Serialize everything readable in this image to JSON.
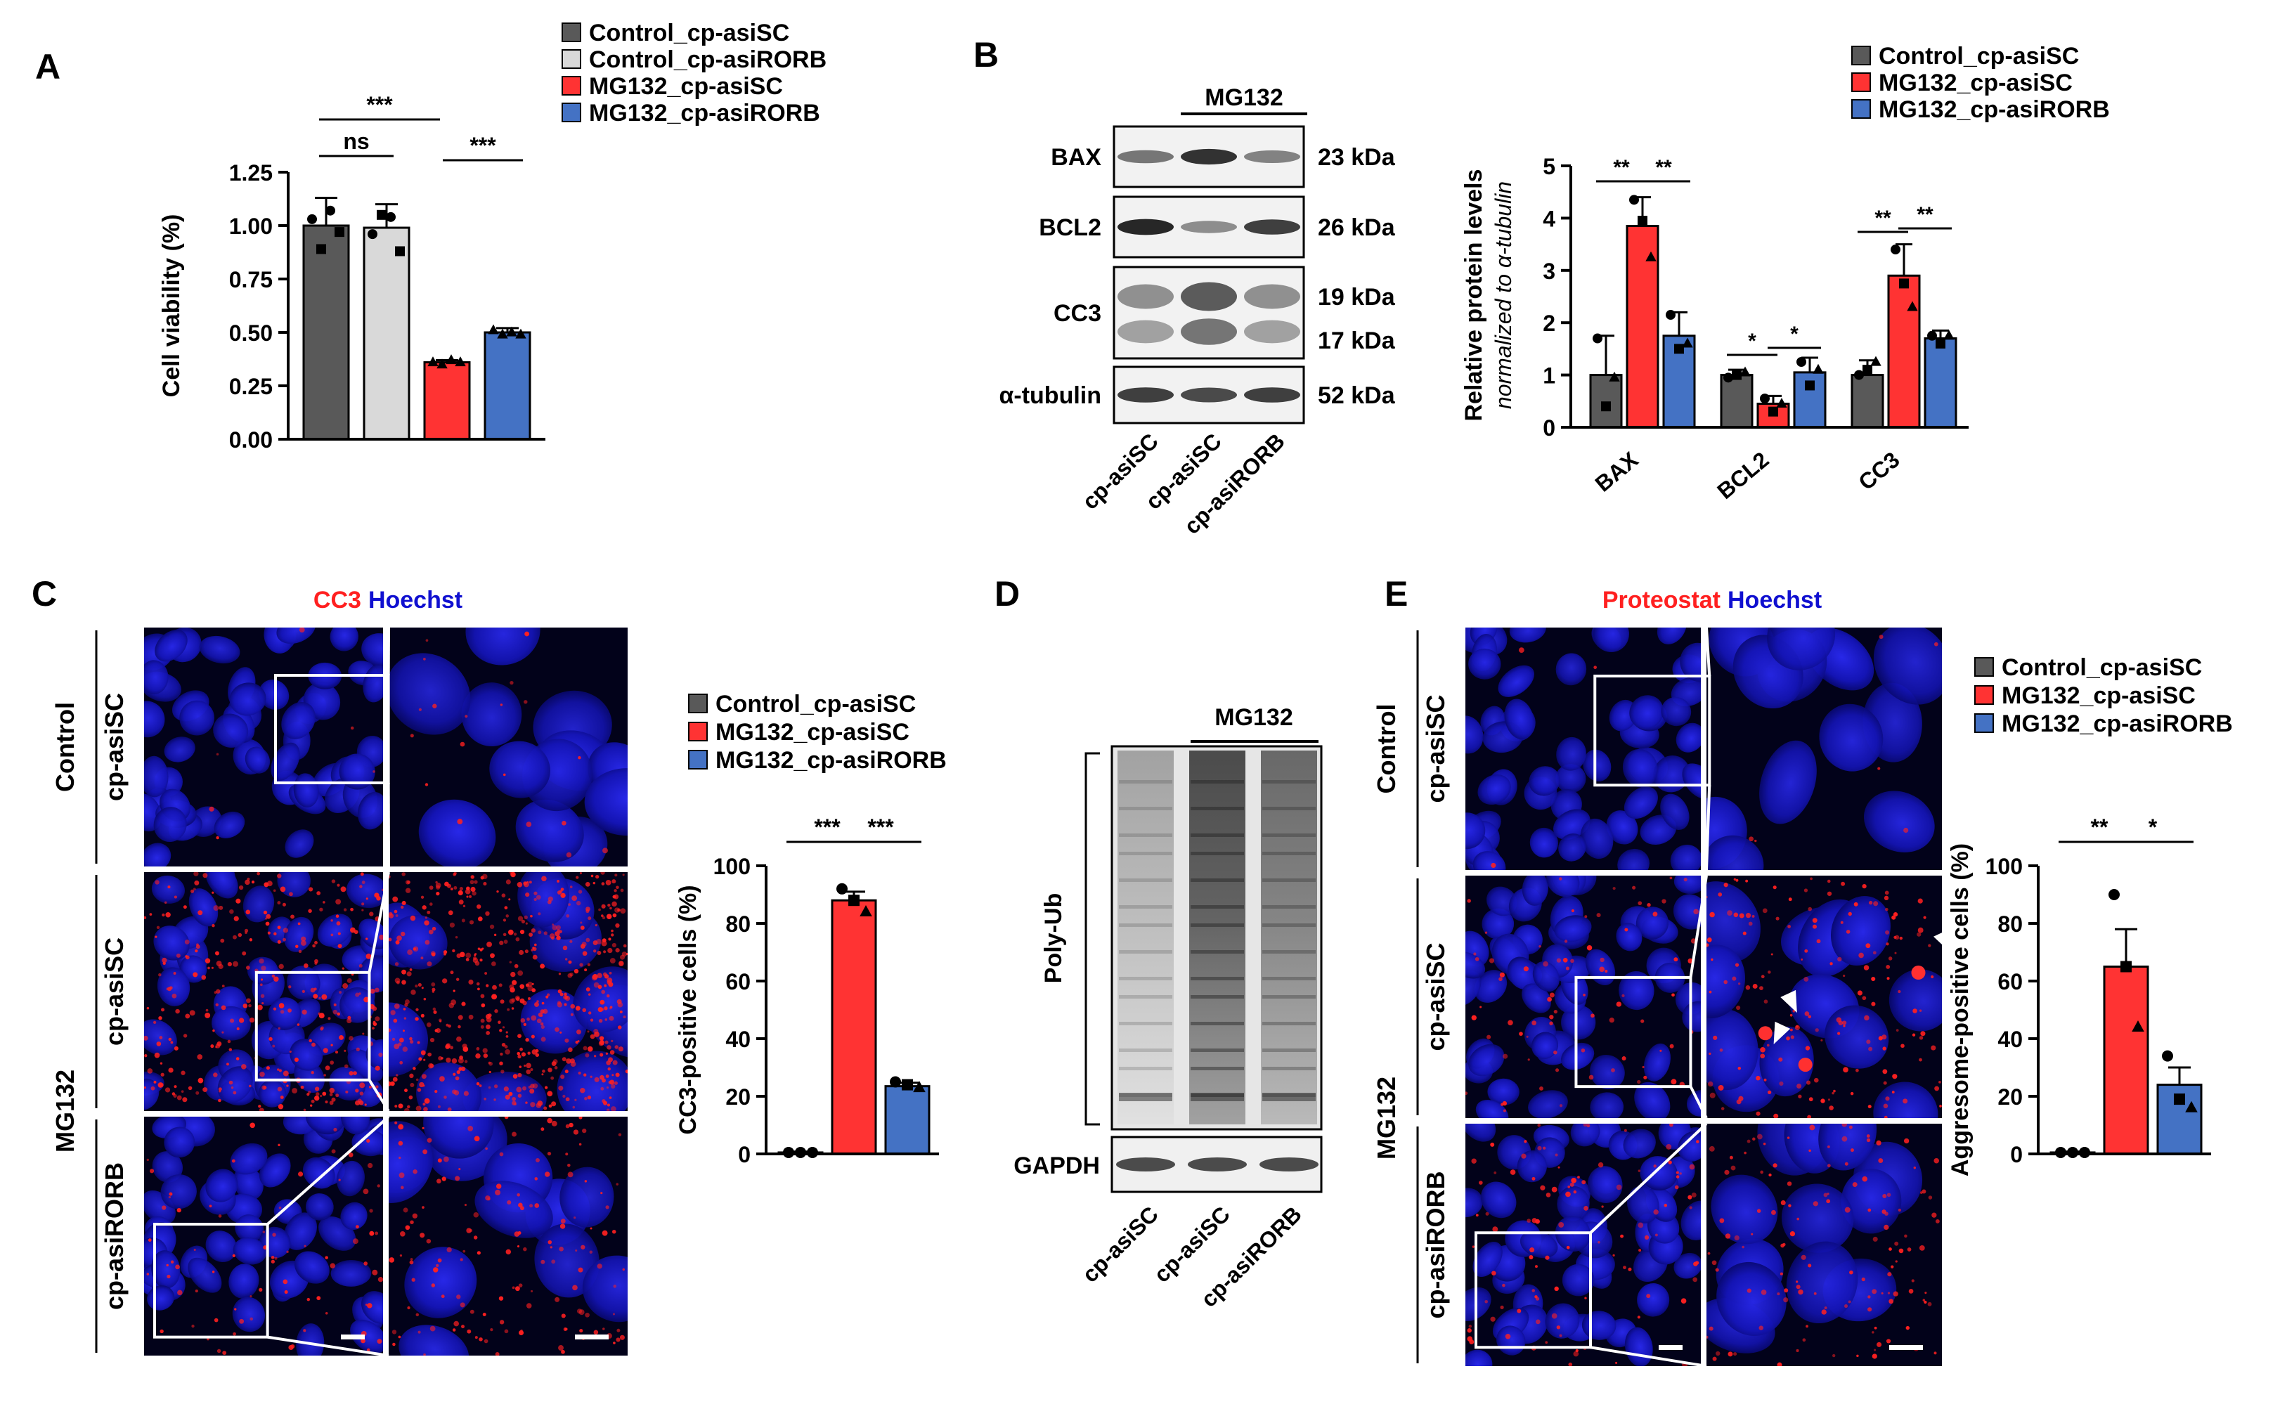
{
  "colors": {
    "control": "#595959",
    "control_asirorb": "#d9d9d9",
    "mg132_asisc": "#ff3333",
    "mg132_asirorb": "#4472c4",
    "cc3_stain": "#ff2020",
    "hoechst_stain": "#1010d0",
    "image_bg": "#02021a"
  },
  "panel_letters": [
    "A",
    "B",
    "C",
    "D",
    "E"
  ],
  "chart_data": [
    {
      "panel": "A",
      "type": "bar",
      "categories": [
        "Control_cp-asiSC",
        "Control_cp-asiRORB",
        "MG132_cp-asiSC",
        "MG132_cp-asiRORB"
      ],
      "values": [
        1.0,
        0.99,
        0.36,
        0.5
      ],
      "errors": [
        0.13,
        0.11,
        0.01,
        0.02
      ],
      "points": [
        [
          1.03,
          0.89,
          1.07,
          0.97
        ],
        [
          0.96,
          1.05,
          1.04,
          0.88
        ],
        [
          0.36,
          0.35,
          0.37,
          0.36
        ],
        [
          0.51,
          0.49,
          0.5,
          0.49
        ]
      ],
      "ylabel": "Cell viability (%)",
      "ylim": [
        0,
        1.25
      ],
      "yticks": [
        "0.00",
        "0.25",
        "0.50",
        "0.75",
        "1.00",
        "1.25"
      ],
      "legend": [
        "Control_cp-asiSC",
        "Control_cp-asiRORB",
        "MG132_cp-asiSC",
        "MG132_cp-asiRORB"
      ],
      "significance": [
        {
          "label": "ns"
        },
        {
          "label": "***"
        },
        {
          "label": "***"
        }
      ]
    },
    {
      "panel": "B",
      "type": "bar",
      "categories": [
        "BAX",
        "BCL2",
        "CC3"
      ],
      "series": [
        {
          "name": "Control_cp-asiSC",
          "values": [
            1.0,
            1.0,
            1.0
          ],
          "errors": [
            0.75,
            0.1,
            0.28
          ],
          "points": [
            [
              1.7,
              0.4,
              0.95
            ],
            [
              0.95,
              1.0,
              1.05
            ],
            [
              1.0,
              1.1,
              1.25
            ]
          ]
        },
        {
          "name": "MG132_cp-asiSC",
          "values": [
            3.85,
            0.45,
            2.9
          ],
          "errors": [
            0.55,
            0.15,
            0.6
          ],
          "points": [
            [
              4.35,
              3.95,
              3.25
            ],
            [
              0.55,
              0.3,
              0.45
            ],
            [
              3.4,
              2.75,
              2.3
            ]
          ]
        },
        {
          "name": "MG132_cp-asiRORB",
          "values": [
            1.75,
            1.05,
            1.7
          ],
          "errors": [
            0.45,
            0.28,
            0.15
          ],
          "points": [
            [
              2.15,
              1.5,
              1.6
            ],
            [
              1.25,
              0.8,
              1.1
            ],
            [
              1.75,
              1.6,
              1.75
            ]
          ]
        }
      ],
      "ylabel": "Relative protein levels",
      "ylabel2": "normalized to α-tubulin",
      "ylim": [
        0,
        5
      ],
      "yticks": [
        "0",
        "1",
        "2",
        "3",
        "4",
        "5"
      ],
      "significance": [
        {
          "label": "**"
        },
        {
          "label": "**"
        },
        {
          "label": "*"
        },
        {
          "label": "*"
        },
        {
          "label": "**"
        },
        {
          "label": "**"
        }
      ]
    },
    {
      "panel": "C",
      "type": "bar",
      "categories": [
        "Control_cp-asiSC",
        "MG132_cp-asiSC",
        "MG132_cp-asiRORB"
      ],
      "values": [
        0.5,
        88,
        23.5
      ],
      "errors": [
        0.3,
        3,
        1.2
      ],
      "points": [
        [
          0.5,
          0.5,
          0.5
        ],
        [
          92,
          88,
          84
        ],
        [
          25,
          24,
          23
        ]
      ],
      "ylabel": "CC3-positive cells (%)",
      "ylim": [
        0,
        100
      ],
      "yticks": [
        "0",
        "20",
        "40",
        "60",
        "80",
        "100"
      ],
      "significance": [
        {
          "label": "***"
        },
        {
          "label": "***"
        }
      ]
    },
    {
      "panel": "E",
      "type": "bar",
      "categories": [
        "Control_cp-asiSC",
        "MG132_cp-asiSC",
        "MG132_cp-asiRORB"
      ],
      "values": [
        0.5,
        65,
        24
      ],
      "errors": [
        0.3,
        13,
        6
      ],
      "points": [
        [
          0.5,
          0.5,
          0.5
        ],
        [
          90,
          65,
          44
        ],
        [
          34,
          19,
          16
        ]
      ],
      "ylabel": "Aggresome-positive cells (%)",
      "ylim": [
        0,
        100
      ],
      "yticks": [
        "0",
        "20",
        "40",
        "60",
        "80",
        "100"
      ],
      "significance": [
        {
          "label": "**"
        },
        {
          "label": "*"
        }
      ]
    }
  ],
  "legends": {
    "A": [
      "Control_cp-asiSC",
      "Control_cp-asiRORB",
      "MG132_cp-asiSC",
      "MG132_cp-asiRORB"
    ],
    "B": [
      "Control_cp-asiSC",
      "MG132_cp-asiSC",
      "MG132_cp-asiRORB"
    ],
    "C": [
      "Control_cp-asiSC",
      "MG132_cp-asiSC",
      "MG132_cp-asiRORB"
    ],
    "E": [
      "Control_cp-asiSC",
      "MG132_cp-asiSC",
      "MG132_cp-asiRORB"
    ]
  },
  "blot_b": {
    "treatment_label": "MG132",
    "rows": [
      {
        "name": "BAX",
        "kda": "23 kDa"
      },
      {
        "name": "BCL2",
        "kda": "26 kDa"
      },
      {
        "name": "CC3",
        "kda": "19 kDa",
        "kda2": "17 kDa"
      },
      {
        "name": "α-tubulin",
        "kda": "52 kDa"
      }
    ],
    "lanes": [
      "cp-asiSC",
      "cp-asiSC",
      "cp-asiRORB"
    ]
  },
  "blot_d": {
    "treatment_label": "MG132",
    "label_main": "Poly-Ub",
    "label_loading": "GAPDH",
    "lanes": [
      "cp-asiSC",
      "cp-asiSC",
      "cp-asiRORB"
    ]
  },
  "micro_c": {
    "title_red": "CC3",
    "title_blue": "Hoechst",
    "group_control": "Control",
    "group_treat": "MG132",
    "rows": [
      "cp-asiSC",
      "cp-asiSC",
      "cp-asiRORB"
    ]
  },
  "micro_e": {
    "title_red": "Proteostat",
    "title_blue": "Hoechst",
    "group_control": "Control",
    "group_treat": "MG132",
    "rows": [
      "cp-asiSC",
      "cp-asiSC",
      "cp-asiRORB"
    ]
  }
}
